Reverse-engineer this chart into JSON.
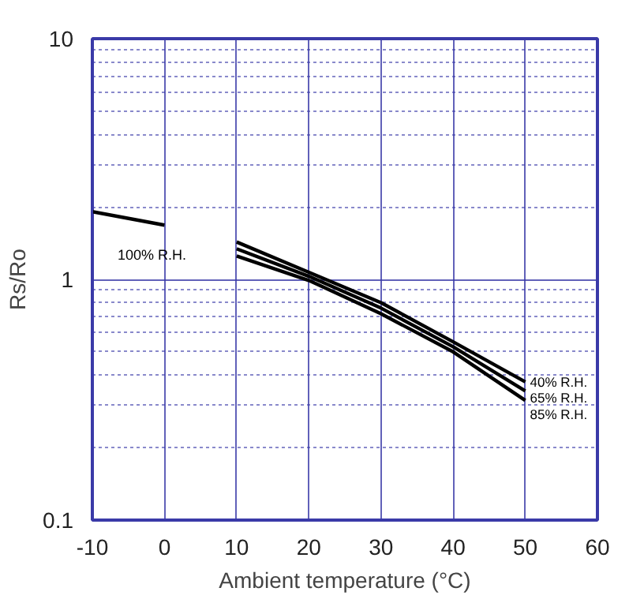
{
  "chart_data": {
    "type": "line",
    "xlabel": "Ambient temperature (°C)",
    "ylabel": "Rs/Ro",
    "log": "y",
    "grid": true,
    "marker": "none",
    "line_style": "solid",
    "xlim": [
      -10,
      60
    ],
    "xticks": [
      -10,
      0,
      10,
      20,
      30,
      40,
      50,
      60
    ],
    "ylim": [
      0.1,
      10
    ],
    "yticks": [
      0.1,
      {
        "value": 0.2,
        "label": null
      },
      {
        "value": 0.3,
        "label": null
      },
      {
        "value": 0.4,
        "label": null
      },
      {
        "value": 0.5,
        "label": null
      },
      {
        "value": 0.6,
        "label": null
      },
      {
        "value": 0.7,
        "label": null
      },
      {
        "value": 0.8,
        "label": null
      },
      {
        "value": 0.9,
        "label": null
      },
      1,
      {
        "value": 2,
        "label": null
      },
      {
        "value": 3,
        "label": null
      },
      {
        "value": 4,
        "label": null
      },
      {
        "value": 5,
        "label": null
      },
      {
        "value": 6,
        "label": null
      },
      {
        "value": 7,
        "label": null
      },
      {
        "value": 8,
        "label": null
      },
      {
        "value": 9,
        "label": null
      },
      10
    ],
    "series": [
      {
        "name": "100% R.H.",
        "color": "#000000",
        "x": [
          -10,
          0
        ],
        "values": [
          1.91,
          1.68
        ]
      },
      {
        "name": "40% R.H.",
        "color": "#000000",
        "x": [
          10,
          20,
          30,
          40,
          50
        ],
        "values": [
          1.43,
          1.07,
          0.8,
          0.55,
          0.375
        ]
      },
      {
        "name": "65% R.H.",
        "color": "#000000",
        "x": [
          10,
          20,
          30,
          40,
          50
        ],
        "values": [
          1.34,
          1.03,
          0.76,
          0.525,
          0.344
        ]
      },
      {
        "name": "85% R.H.",
        "color": "#000000",
        "x": [
          10,
          20,
          30,
          40,
          50
        ],
        "values": [
          1.25,
          0.99,
          0.72,
          0.5,
          0.314
        ]
      }
    ]
  }
}
